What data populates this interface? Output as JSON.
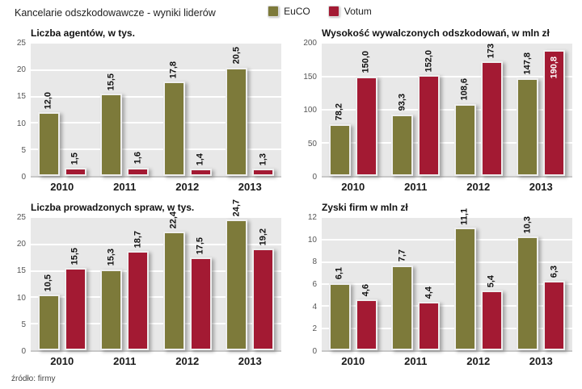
{
  "header": {
    "title": "Kancelarie odszkodowawcze - wyniki liderów"
  },
  "legend": {
    "items": [
      {
        "label": "EuCO",
        "color": "#7d7a3a"
      },
      {
        "label": "Votum",
        "color": "#a31a33"
      }
    ]
  },
  "footer": {
    "source": "źródło: firmy"
  },
  "colors": {
    "euco": "#7d7a3a",
    "votum": "#a31a33",
    "plot_background": "#e8e8e8",
    "gridline": "#ffffff",
    "bar_outline": "#efefef",
    "value_label": "#111111",
    "value_label_inside": "#ffffff"
  },
  "chart_data": [
    {
      "type": "bar",
      "title": "Liczba agentów, w tys.",
      "categories": [
        "2010",
        "2011",
        "2012",
        "2013"
      ],
      "series": [
        {
          "name": "EuCO",
          "color": "#7d7a3a",
          "values": [
            12.0,
            15.5,
            17.8,
            20.5
          ],
          "labels": [
            "12,0",
            "15,5",
            "17,8",
            "20,5"
          ]
        },
        {
          "name": "Votum",
          "color": "#a31a33",
          "values": [
            1.5,
            1.6,
            1.4,
            1.3
          ],
          "labels": [
            "1,5",
            "1,6",
            "1,4",
            "1,3"
          ]
        }
      ],
      "ylim": [
        0,
        25
      ],
      "yticks": [
        "0",
        "5",
        "10",
        "15",
        "20",
        "25"
      ],
      "grid": true,
      "legend_position": "shared-top"
    },
    {
      "type": "bar",
      "title": "Wysokość wywalczonych odszkodowań, w mln zł",
      "categories": [
        "2010",
        "2011",
        "2012",
        "2013"
      ],
      "series": [
        {
          "name": "EuCO",
          "color": "#7d7a3a",
          "values": [
            78.2,
            93.3,
            108.6,
            147.8
          ],
          "labels": [
            "78,2",
            "93,3",
            "108,6",
            "147,8"
          ]
        },
        {
          "name": "Votum",
          "color": "#a31a33",
          "values": [
            150.0,
            152.0,
            173,
            190.8
          ],
          "labels": [
            "150,0",
            "152,0",
            "173",
            "190,8"
          ],
          "labels_inside": [
            false,
            false,
            false,
            true
          ]
        }
      ],
      "ylim": [
        0,
        200
      ],
      "yticks": [
        "0",
        "50",
        "100",
        "150",
        "200"
      ],
      "grid": true,
      "legend_position": "shared-top"
    },
    {
      "type": "bar",
      "title": "Liczba prowadzonych spraw, w tys.",
      "categories": [
        "2010",
        "2011",
        "2012",
        "2013"
      ],
      "series": [
        {
          "name": "EuCO",
          "color": "#7d7a3a",
          "values": [
            10.5,
            15.3,
            22.4,
            24.7
          ],
          "labels": [
            "10,5",
            "15,3",
            "22,4",
            "24,7"
          ]
        },
        {
          "name": "Votum",
          "color": "#a31a33",
          "values": [
            15.5,
            18.7,
            17.5,
            19.2
          ],
          "labels": [
            "15,5",
            "18,7",
            "17,5",
            "19,2"
          ]
        }
      ],
      "ylim": [
        0,
        25
      ],
      "yticks": [
        "0",
        "5",
        "10",
        "15",
        "20",
        "25"
      ],
      "grid": true,
      "legend_position": "shared-top"
    },
    {
      "type": "bar",
      "title": "Zyski firm w mln zł",
      "categories": [
        "2010",
        "2011",
        "2012",
        "2013"
      ],
      "series": [
        {
          "name": "EuCO",
          "color": "#7d7a3a",
          "values": [
            6.1,
            7.7,
            11.1,
            10.3
          ],
          "labels": [
            "6,1",
            "7,7",
            "11,1",
            "10,3"
          ]
        },
        {
          "name": "Votum",
          "color": "#a31a33",
          "values": [
            4.6,
            4.4,
            5.4,
            6.3
          ],
          "labels": [
            "4,6",
            "4,4",
            "5,4",
            "6,3"
          ]
        }
      ],
      "ylim": [
        0,
        12
      ],
      "yticks": [
        "0",
        "2",
        "4",
        "6",
        "8",
        "10",
        "12"
      ],
      "grid": true,
      "legend_position": "shared-top"
    }
  ]
}
